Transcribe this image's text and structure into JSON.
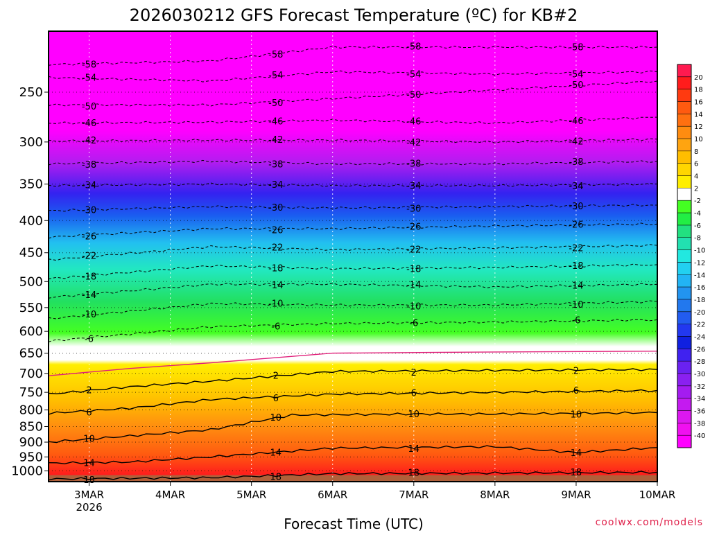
{
  "chart_data": {
    "type": "heatmap",
    "title": "2026030212 GFS Forecast Temperature (ºC) for KB#2",
    "xlabel": "Forecast Time (UTC)",
    "ylabel": "",
    "credit": "coolwx.com/models",
    "x_ticks": [
      {
        "label": "3MAR",
        "sublabel": "2026"
      },
      {
        "label": "4MAR",
        "sublabel": ""
      },
      {
        "label": "5MAR",
        "sublabel": ""
      },
      {
        "label": "6MAR",
        "sublabel": ""
      },
      {
        "label": "7MAR",
        "sublabel": ""
      },
      {
        "label": "8MAR",
        "sublabel": ""
      },
      {
        "label": "9MAR",
        "sublabel": ""
      },
      {
        "label": "10MAR",
        "sublabel": ""
      }
    ],
    "x_range_days": [
      2.5,
      10.0
    ],
    "y_axis": {
      "scale": "log",
      "inverted": true,
      "range_hpa": [
        1040,
        200
      ]
    },
    "y_ticks": [
      "250",
      "300",
      "350",
      "400",
      "450",
      "500",
      "550",
      "600",
      "650",
      "700",
      "750",
      "800",
      "850",
      "900",
      "950",
      "1000"
    ],
    "y_tick_values": [
      250,
      300,
      350,
      400,
      450,
      500,
      550,
      600,
      650,
      700,
      750,
      800,
      850,
      900,
      950,
      1000
    ],
    "colorbar": {
      "labels": [
        "20",
        "18",
        "16",
        "14",
        "12",
        "10",
        "8",
        "6",
        "4",
        "2",
        "-2",
        "-4",
        "-6",
        "-8",
        "-10",
        "-12",
        "-14",
        "-16",
        "-18",
        "-20",
        "-22",
        "-24",
        "-26",
        "-28",
        "-30",
        "-32",
        "-34",
        "-36",
        "-38",
        "-40"
      ],
      "colors": [
        "#ff1a50",
        "#ff1c1c",
        "#ff3a10",
        "#ff5a10",
        "#ff7010",
        "#ff8c10",
        "#ffa410",
        "#ffbe00",
        "#ffd600",
        "#ffee00",
        "#ffffff",
        "#44ff22",
        "#22ee44",
        "#22e080",
        "#22e0b0",
        "#22e8e0",
        "#22d0f0",
        "#22b4f4",
        "#2294f0",
        "#2278ee",
        "#225cf0",
        "#2238f0",
        "#1020e0",
        "#4022f0",
        "#6a22f0",
        "#8a20f0",
        "#a41cf0",
        "#c41af0",
        "#dc18f0",
        "#f010f0",
        "#ff00ff"
      ]
    },
    "isotherms": [
      {
        "temp": -58,
        "label": "-58",
        "profile": [
          [
            2.5,
            226
          ],
          [
            4.5,
            223
          ],
          [
            6,
            212
          ],
          [
            8,
            212
          ],
          [
            10,
            212
          ]
        ]
      },
      {
        "temp": -54,
        "label": "-54",
        "profile": [
          [
            2.5,
            237
          ],
          [
            4.5,
            240
          ],
          [
            6,
            232
          ],
          [
            8,
            234
          ],
          [
            10,
            232
          ]
        ]
      },
      {
        "temp": -50,
        "label": "-50",
        "profile": [
          [
            2.5,
            262
          ],
          [
            4.5,
            262
          ],
          [
            6,
            256
          ],
          [
            8,
            248
          ],
          [
            10,
            240
          ]
        ]
      },
      {
        "temp": -46,
        "label": "-46",
        "profile": [
          [
            2.5,
            280
          ],
          [
            4.5,
            279
          ],
          [
            6,
            277
          ],
          [
            8,
            280
          ],
          [
            10,
            274
          ]
        ]
      },
      {
        "temp": -42,
        "label": "-42",
        "profile": [
          [
            2.5,
            299
          ],
          [
            4.5,
            298
          ],
          [
            6,
            298
          ],
          [
            8,
            300
          ],
          [
            10,
            297
          ]
        ]
      },
      {
        "temp": -38,
        "label": "-38",
        "profile": [
          [
            2.5,
            325
          ],
          [
            4.5,
            322
          ],
          [
            6,
            325
          ],
          [
            8,
            325
          ],
          [
            10,
            322
          ]
        ]
      },
      {
        "temp": -34,
        "label": "-34",
        "profile": [
          [
            2.5,
            352
          ],
          [
            4.5,
            350
          ],
          [
            6,
            352
          ],
          [
            8,
            352
          ],
          [
            10,
            350
          ]
        ]
      },
      {
        "temp": -30,
        "label": "-30",
        "profile": [
          [
            2.5,
            386
          ],
          [
            4.5,
            380
          ],
          [
            6,
            382
          ],
          [
            8,
            380
          ],
          [
            10,
            378
          ]
        ]
      },
      {
        "temp": -26,
        "label": "-26",
        "profile": [
          [
            2.5,
            425
          ],
          [
            4.5,
            412
          ],
          [
            6,
            412
          ],
          [
            8,
            408
          ],
          [
            10,
            405
          ]
        ]
      },
      {
        "temp": -22,
        "label": "-22",
        "profile": [
          [
            2.5,
            462
          ],
          [
            4.5,
            440
          ],
          [
            6,
            445
          ],
          [
            8,
            442
          ],
          [
            10,
            438
          ]
        ]
      },
      {
        "temp": -18,
        "label": "-18",
        "profile": [
          [
            2.5,
            495
          ],
          [
            4.5,
            472
          ],
          [
            6,
            477
          ],
          [
            8,
            475
          ],
          [
            10,
            470
          ]
        ]
      },
      {
        "temp": -14,
        "label": "-14",
        "profile": [
          [
            2.5,
            530
          ],
          [
            4.5,
            505
          ],
          [
            6,
            505
          ],
          [
            8,
            510
          ],
          [
            10,
            505
          ]
        ]
      },
      {
        "temp": -10,
        "label": "-10",
        "profile": [
          [
            2.5,
            573
          ],
          [
            4.5,
            542
          ],
          [
            6,
            545
          ],
          [
            8,
            545
          ],
          [
            10,
            538
          ]
        ]
      },
      {
        "temp": -6,
        "label": "-6",
        "profile": [
          [
            2.5,
            622
          ],
          [
            4.5,
            590
          ],
          [
            6,
            583
          ],
          [
            8,
            580
          ],
          [
            10,
            575
          ]
        ]
      },
      {
        "temp": 2,
        "label": "2",
        "profile": [
          [
            2.5,
            755
          ],
          [
            3.5,
            735
          ],
          [
            4.5,
            720
          ],
          [
            6,
            695
          ],
          [
            8,
            692
          ],
          [
            10,
            690
          ]
        ]
      },
      {
        "temp": 6,
        "label": "6",
        "profile": [
          [
            2.5,
            810
          ],
          [
            3.5,
            795
          ],
          [
            4.5,
            770
          ],
          [
            6,
            755
          ],
          [
            8,
            750
          ],
          [
            10,
            745
          ]
        ]
      },
      {
        "temp": 10,
        "label": "10",
        "profile": [
          [
            2.5,
            900
          ],
          [
            4.5,
            860
          ],
          [
            5.5,
            815
          ],
          [
            7,
            812
          ],
          [
            8,
            812
          ],
          [
            10,
            808
          ]
        ]
      },
      {
        "temp": 14,
        "label": "14",
        "profile": [
          [
            2.5,
            972
          ],
          [
            3.5,
            968
          ],
          [
            4.5,
            950
          ],
          [
            6,
            920
          ],
          [
            8,
            915
          ],
          [
            9,
            935
          ],
          [
            10,
            918
          ]
        ]
      },
      {
        "temp": 18,
        "label": "18",
        "profile": [
          [
            2.5,
            1030
          ],
          [
            4.5,
            1025
          ],
          [
            6,
            1010
          ],
          [
            8,
            1008
          ],
          [
            10,
            1005
          ]
        ]
      }
    ]
  }
}
